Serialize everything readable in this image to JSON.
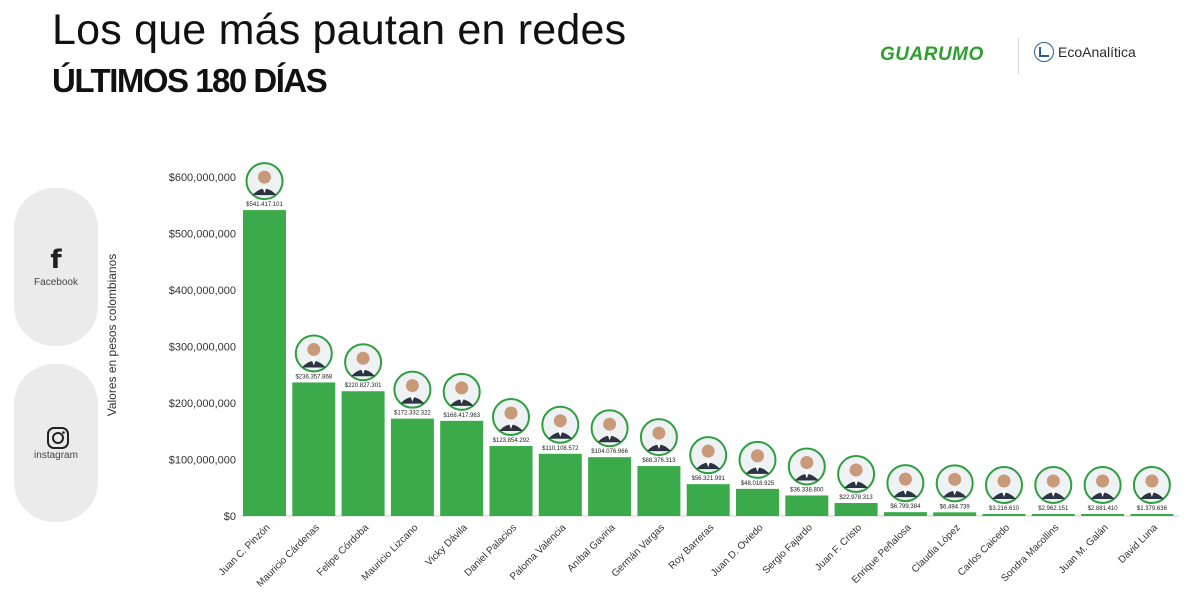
{
  "header": {
    "title": "Los que más pautan en redes",
    "subtitle": "ÚLTIMOS 180 DÍAS"
  },
  "brands": {
    "guarumo": "GUARUMO",
    "ecoanalitica": "EcoAnalítica",
    "guarumo_color": "#2e9e2e"
  },
  "social": {
    "facebook_label": "Facebook",
    "instagram_label": "instagram",
    "facebook_icon": "facebook-icon",
    "instagram_icon": "instagram-icon"
  },
  "chart_data": {
    "type": "bar",
    "title": "",
    "xlabel": "",
    "ylabel": "Valores en pesos colombianos",
    "ylim": [
      0,
      600000000
    ],
    "yticks": [
      0,
      100000000,
      200000000,
      300000000,
      400000000,
      500000000,
      600000000
    ],
    "ytick_labels": [
      "$0",
      "$100,000,000",
      "$200,000,000",
      "$300,000,000",
      "$400,000,000",
      "$500,000,000",
      "$600,000,000"
    ],
    "grid": false,
    "bar_color": "#3aaa4a",
    "categories": [
      "Juan C. Pinzón",
      "Mauricio Cárdenas",
      "Felipe Córdoba",
      "Mauricio Lizcano",
      "Vicky Dávila",
      "Daniel Palacios",
      "Paloma Valencia",
      "Aníbal Gaviria",
      "Germán Vargas",
      "Roy Barreras",
      "Juan D. Oviedo",
      "Sergio Fajardo",
      "Juan F. Cristo",
      "Enrique Peñalosa",
      "Claudia López",
      "Carlos Caicedo",
      "Sondra Macollins",
      "Juan M. Galán",
      "David Luna"
    ],
    "values": [
      541417101,
      236357868,
      220827301,
      172332322,
      168417963,
      123854292,
      110108572,
      104076966,
      88376313,
      56321991,
      48018925,
      36338800,
      22978313,
      6799384,
      6494739,
      3216610,
      2962151,
      2881410,
      1379636
    ],
    "value_labels": [
      "$541.417.101",
      "$236.357.868",
      "$220.827.301",
      "$172.332.322",
      "$168.417.963",
      "$123.854.292",
      "$110.108.572",
      "$104.076.966",
      "$88.376.313",
      "$56.321.991",
      "$48.018.925",
      "$36.338.800",
      "$22.978.313",
      "$6.799.384",
      "$6.494.739",
      "$3.216.610",
      "$2.962.151",
      "$2.881.410",
      "$1.379.636"
    ],
    "icons": "person-avatar"
  }
}
